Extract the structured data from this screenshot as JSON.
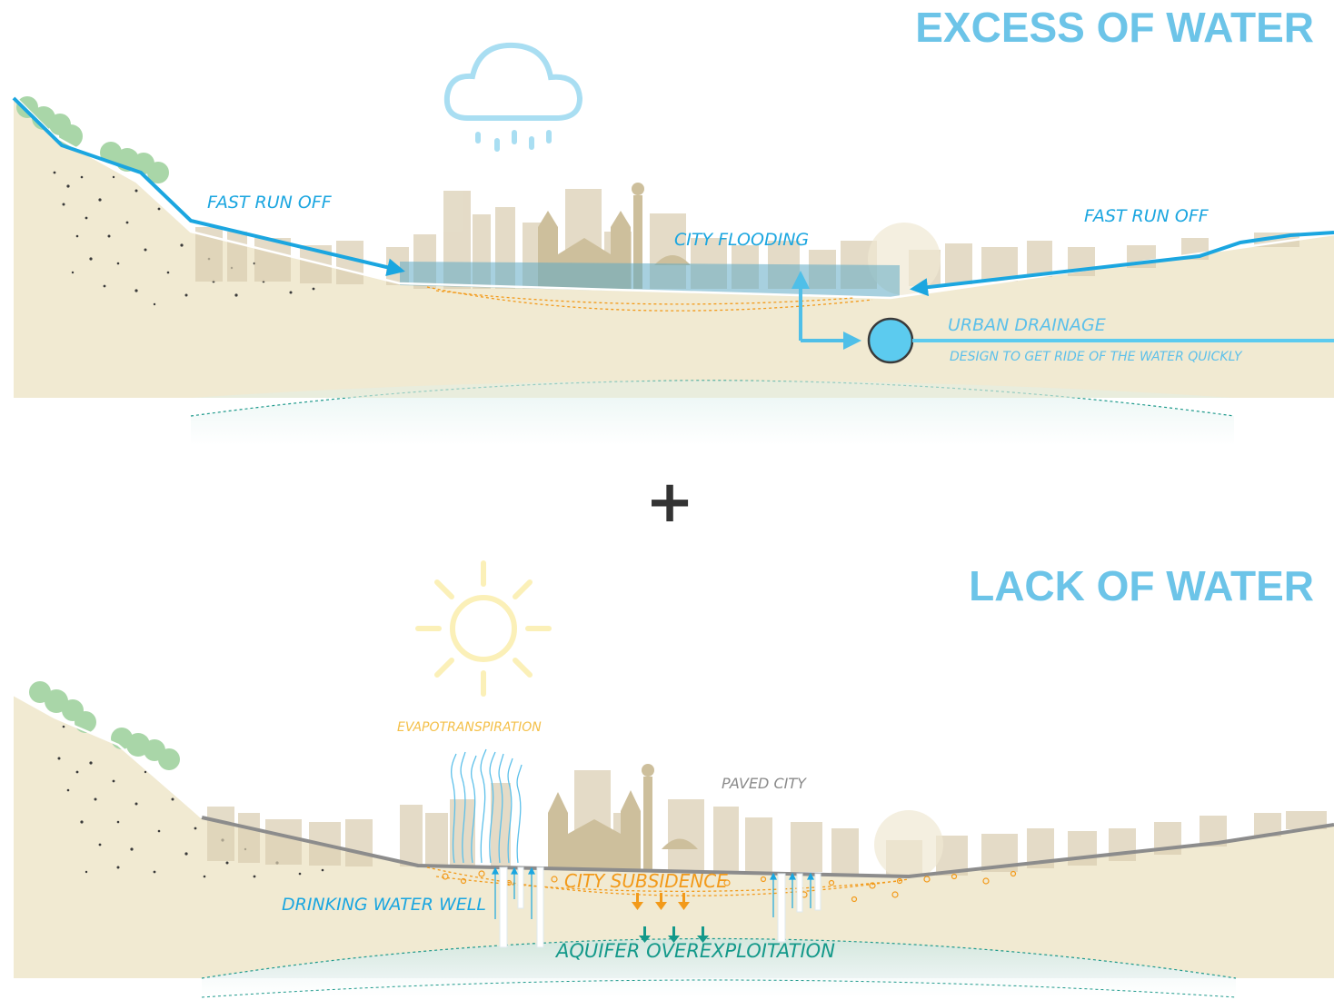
{
  "top_panel": {
    "title": "EXCESS OF WATER",
    "label_runoff_left": "FAST RUN OFF",
    "label_runoff_right": "FAST RUN OFF",
    "label_flooding": "CITY FLOODING",
    "label_drainage": "URBAN DRAINAGE",
    "label_drainage_note": "DESIGN TO GET RIDE OF THE WATER  QUICKLY",
    "weather_icon": "rain-cloud-icon"
  },
  "separator": {
    "symbol": "+"
  },
  "bottom_panel": {
    "title": "LACK OF WATER",
    "label_evapo": "EVAPOTRANSPIRATION",
    "label_paved": "PAVED CITY",
    "label_subsidence": "CITY SUBSIDENCE",
    "label_well": "DRINKING WATER WELL",
    "label_aquifer": "AQUIFER OVEREXPLOITATION",
    "weather_icon": "sun-icon"
  },
  "colors": {
    "ground": "#f1ead2",
    "water": "#1ba6e0",
    "title": "#6cc4e8",
    "tree": "#a9d6a8",
    "city": "#d9cdb0",
    "orange": "#f29a1a",
    "teal": "#14998a",
    "road": "#8c8c8c"
  }
}
